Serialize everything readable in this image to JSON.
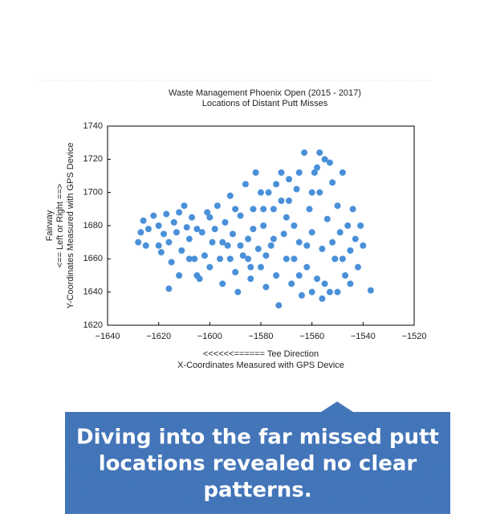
{
  "chart_data": {
    "type": "scatter",
    "title": [
      "Waste Management Phoenix Open (2015 - 2017)",
      "Locations of Distant Putt Misses"
    ],
    "x_label": [
      "<<<<<<====== Tee Direction",
      "X-Coordinates Measured with GPS Device"
    ],
    "y_label": [
      "Fairway",
      "<== Left or Right ==>",
      "Y-Coordinates Measured with GPS Device"
    ],
    "color": "#4a90d9",
    "xlim": [
      -1640,
      -1520
    ],
    "xticks": [
      {
        "value": -1640,
        "label": "−1640"
      },
      {
        "value": -1620,
        "label": "−1620"
      },
      {
        "value": -1600,
        "label": "−1600"
      },
      {
        "value": -1580,
        "label": "−1580"
      },
      {
        "value": -1560,
        "label": "−1560"
      },
      {
        "value": -1540,
        "label": "−1540"
      },
      {
        "value": -1520,
        "label": "−1520"
      }
    ],
    "ylim": [
      1620,
      1740
    ],
    "yticks": [
      1620,
      1640,
      1660,
      1680,
      1700,
      1720,
      1740
    ],
    "x": [
      -1628,
      -1627,
      -1626,
      -1625,
      -1624,
      -1622,
      -1620,
      -1619,
      -1618,
      -1617,
      -1616,
      -1615,
      -1614,
      -1613,
      -1612,
      -1611,
      -1610,
      -1609,
      -1608,
      -1607,
      -1606,
      -1605,
      -1604,
      -1603,
      -1602,
      -1601,
      -1600,
      -1599,
      -1598,
      -1597,
      -1596,
      -1595,
      -1594,
      -1593,
      -1592,
      -1591,
      -1590,
      -1589,
      -1588,
      -1587,
      -1586,
      -1585,
      -1584,
      -1583,
      -1582,
      -1581,
      -1580,
      -1579,
      -1578,
      -1577,
      -1576,
      -1575,
      -1574,
      -1573,
      -1572,
      -1571,
      -1570,
      -1569,
      -1568,
      -1567,
      -1566,
      -1565,
      -1564,
      -1563,
      -1562,
      -1561,
      -1560,
      -1559,
      -1558,
      -1557,
      -1556,
      -1555,
      -1554,
      -1553,
      -1552,
      -1551,
      -1550,
      -1549,
      -1548,
      -1547,
      -1546,
      -1545,
      -1544,
      -1543,
      -1542,
      -1541,
      -1540,
      -1537,
      -1616,
      -1612,
      -1580,
      -1585,
      -1590,
      -1570,
      -1565,
      -1560,
      -1558,
      -1552,
      -1548,
      -1575,
      -1578,
      -1583,
      -1567,
      -1562,
      -1555,
      -1550,
      -1545,
      -1572,
      -1560,
      -1556,
      -1600,
      -1605,
      -1608,
      -1620,
      -1595,
      -1588,
      -1565,
      -1557,
      -1553,
      -1569,
      -1574,
      -1579,
      -1584,
      -1592
    ],
    "values": [
      1670,
      1676,
      1683,
      1668,
      1678,
      1686,
      1680,
      1664,
      1675,
      1687,
      1670,
      1658,
      1682,
      1676,
      1688,
      1665,
      1692,
      1679,
      1672,
      1685,
      1660,
      1650,
      1648,
      1676,
      1662,
      1688,
      1655,
      1670,
      1678,
      1692,
      1660,
      1645,
      1682,
      1668,
      1698,
      1675,
      1652,
      1640,
      1686,
      1662,
      1705,
      1672,
      1648,
      1690,
      1712,
      1666,
      1655,
      1680,
      1643,
      1700,
      1668,
      1690,
      1650,
      1632,
      1712,
      1675,
      1660,
      1695,
      1645,
      1680,
      1702,
      1670,
      1638,
      1724,
      1655,
      1690,
      1676,
      1712,
      1648,
      1700,
      1666,
      1720,
      1684,
      1640,
      1706,
      1660,
      1692,
      1676,
      1712,
      1650,
      1680,
      1665,
      1690,
      1672,
      1655,
      1680,
      1668,
      1641,
      1642,
      1650,
      1700,
      1660,
      1690,
      1685,
      1650,
      1700,
      1715,
      1670,
      1660,
      1672,
      1662,
      1678,
      1660,
      1668,
      1645,
      1640,
      1645,
      1695,
      1640,
      1636,
      1685,
      1678,
      1660,
      1668,
      1670,
      1668,
      1712,
      1724,
      1718,
      1708,
      1705,
      1690,
      1655,
      1660
    ]
  },
  "callout": {
    "lines": [
      "Diving into the far missed putt",
      "locations revealed no clear",
      "patterns."
    ]
  }
}
